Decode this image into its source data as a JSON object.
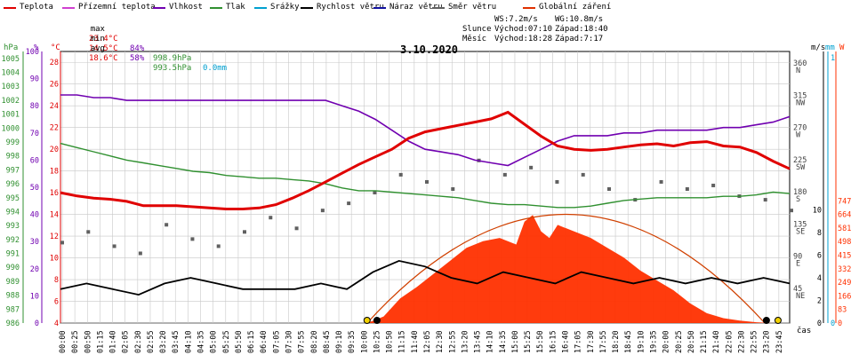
{
  "legend": [
    {
      "label": "Teplota",
      "color": "#e00000"
    },
    {
      "label": "Přízemní teplota",
      "color": "#d040d0"
    },
    {
      "label": "Vlhkost",
      "color": "#7000b0"
    },
    {
      "label": "Tlak",
      "color": "#309030"
    },
    {
      "label": "Srážky",
      "color": "#00a0d0"
    },
    {
      "label": "Rychlost větru",
      "color": "#000000"
    },
    {
      "label": "Náraz větru",
      "color": "#1010a0"
    },
    {
      "label": "Směr větru",
      "color": "#606060"
    },
    {
      "label": "Globální záření",
      "color": "#e03000"
    }
  ],
  "stats": {
    "max_label": "max",
    "max_temp": "23.4°C",
    "max_hum": "84%",
    "max_press": "998.9hPa",
    "max_rain": "0.0mm",
    "min_label": "min",
    "min_temp": "14.5°C",
    "min_hum": "58%",
    "min_press": "993.5hPa",
    "avg_label": "avg",
    "avg_temp": "18.6°C"
  },
  "wind": {
    "ws": "WS:7.2m/s",
    "wg": "WG:10.8m/s"
  },
  "sun": {
    "label": "Slunce",
    "rise": "Východ:07:10",
    "set": "Západ:18:40"
  },
  "moon": {
    "label": "Měsíc",
    "rise": "Východ:18:28",
    "set": "Západ:7:17"
  },
  "unit_labels": {
    "hpa": "hPa",
    "pct": "%",
    "degc": "°C",
    "ms": "m/s",
    "mm": "mm",
    "w": "W",
    "cas": "čas"
  },
  "colors": {
    "temp": "#e00000",
    "ground": "#d040d0",
    "hum": "#7000b0",
    "press": "#309030",
    "rain": "#00a0d0",
    "wind": "#000000",
    "gust": "#1010a0",
    "dir": "#606060",
    "rad": "#ff3000",
    "grid": "#c8c8c8"
  },
  "chart_data": {
    "type": "line",
    "title": "3.10.2020",
    "x_ticks": [
      "00:00",
      "00:25",
      "00:50",
      "01:15",
      "01:40",
      "02:05",
      "02:30",
      "02:55",
      "03:20",
      "03:45",
      "04:10",
      "04:35",
      "05:00",
      "05:25",
      "05:50",
      "06:15",
      "06:40",
      "07:05",
      "07:30",
      "07:55",
      "08:20",
      "08:45",
      "09:10",
      "09:35",
      "10:00",
      "10:25",
      "10:50",
      "11:15",
      "11:40",
      "12:05",
      "12:30",
      "12:55",
      "13:20",
      "13:45",
      "14:10",
      "14:35",
      "15:00",
      "15:25",
      "15:50",
      "16:15",
      "16:40",
      "17:05",
      "17:30",
      "17:55",
      "18:20",
      "18:45",
      "19:10",
      "19:35",
      "20:00",
      "20:25",
      "20:50",
      "21:15",
      "21:40",
      "22:05",
      "22:30",
      "22:55",
      "23:20",
      "23:45"
    ],
    "axes": {
      "hpa": {
        "ticks": [
          "1005",
          "1004",
          "1003",
          "1002",
          "1001",
          "1000",
          "999",
          "998",
          "997",
          "996",
          "995",
          "994",
          "993",
          "992",
          "991",
          "990",
          "989",
          "988",
          "987",
          "986"
        ],
        "range": [
          986,
          1005.5
        ]
      },
      "pct": {
        "ticks": [
          "100",
          "90",
          "80",
          "70",
          "60",
          "50",
          "40",
          "30",
          "20",
          "10",
          "0"
        ],
        "range": [
          0,
          100
        ]
      },
      "degc": {
        "ticks": [
          "28",
          "26",
          "24",
          "22",
          "20",
          "18",
          "16",
          "14",
          "12",
          "10",
          "8",
          "6",
          "4"
        ],
        "range": [
          4,
          29
        ]
      },
      "dir": {
        "ticks": [
          "360",
          "315",
          "270",
          "225",
          "180",
          "135",
          "90",
          "45"
        ],
        "labels": [
          "N",
          "NW",
          "W",
          "SW",
          "S",
          "SE",
          "E",
          "NE"
        ]
      },
      "ms": {
        "ticks": [
          "10",
          "8",
          "6",
          "4",
          "2",
          "0"
        ],
        "range": [
          0,
          10
        ]
      },
      "mm": {
        "ticks": [
          "1",
          "0"
        ],
        "range": [
          0,
          1
        ]
      },
      "w": {
        "ticks": [
          "747",
          "664",
          "581",
          "498",
          "415",
          "332",
          "249",
          "166",
          "83",
          "0"
        ],
        "range": [
          0,
          830
        ]
      }
    },
    "series": [
      {
        "name": "Teplota",
        "unit": "°C",
        "points": [
          [
            0,
            16
          ],
          [
            1,
            15.7
          ],
          [
            2,
            15.5
          ],
          [
            3,
            15.4
          ],
          [
            4,
            15.2
          ],
          [
            5,
            14.8
          ],
          [
            6,
            14.8
          ],
          [
            7,
            14.8
          ],
          [
            8,
            14.7
          ],
          [
            9,
            14.6
          ],
          [
            10,
            14.5
          ],
          [
            11,
            14.5
          ],
          [
            12,
            14.6
          ],
          [
            13,
            14.9
          ],
          [
            14,
            15.5
          ],
          [
            15,
            16.2
          ],
          [
            16,
            17
          ],
          [
            17,
            17.8
          ],
          [
            18,
            18.6
          ],
          [
            19,
            19.3
          ],
          [
            20,
            20
          ],
          [
            21,
            21
          ],
          [
            22,
            21.6
          ],
          [
            23,
            21.9
          ],
          [
            24,
            22.2
          ],
          [
            25,
            22.5
          ],
          [
            26,
            22.8
          ],
          [
            27,
            23.4
          ],
          [
            28,
            22.3
          ],
          [
            29,
            21.2
          ],
          [
            30,
            20.3
          ],
          [
            31,
            20
          ],
          [
            32,
            19.9
          ],
          [
            33,
            20
          ],
          [
            34,
            20.2
          ],
          [
            35,
            20.4
          ],
          [
            36,
            20.5
          ],
          [
            37,
            20.3
          ],
          [
            38,
            20.6
          ],
          [
            39,
            20.7
          ],
          [
            40,
            20.3
          ],
          [
            41,
            20.2
          ],
          [
            42,
            19.7
          ],
          [
            43,
            18.9
          ],
          [
            44,
            18.2
          ]
        ]
      },
      {
        "name": "Vlhkost",
        "unit": "%",
        "points": [
          [
            0,
            84
          ],
          [
            1,
            84
          ],
          [
            2,
            83
          ],
          [
            3,
            83
          ],
          [
            4,
            82
          ],
          [
            5,
            82
          ],
          [
            6,
            82
          ],
          [
            7,
            82
          ],
          [
            8,
            82
          ],
          [
            9,
            82
          ],
          [
            10,
            82
          ],
          [
            11,
            82
          ],
          [
            12,
            82
          ],
          [
            13,
            82
          ],
          [
            14,
            82
          ],
          [
            15,
            82
          ],
          [
            16,
            82
          ],
          [
            17,
            80
          ],
          [
            18,
            78
          ],
          [
            19,
            75
          ],
          [
            20,
            71
          ],
          [
            21,
            67
          ],
          [
            22,
            64
          ],
          [
            23,
            63
          ],
          [
            24,
            62
          ],
          [
            25,
            60
          ],
          [
            26,
            59
          ],
          [
            27,
            58
          ],
          [
            28,
            61
          ],
          [
            29,
            64
          ],
          [
            30,
            67
          ],
          [
            31,
            69
          ],
          [
            32,
            69
          ],
          [
            33,
            69
          ],
          [
            34,
            70
          ],
          [
            35,
            70
          ],
          [
            36,
            71
          ],
          [
            37,
            71
          ],
          [
            38,
            71
          ],
          [
            39,
            71
          ],
          [
            40,
            72
          ],
          [
            41,
            72
          ],
          [
            42,
            73
          ],
          [
            43,
            74
          ],
          [
            44,
            76
          ]
        ]
      },
      {
        "name": "Tlak",
        "unit": "hPa",
        "points": [
          [
            0,
            998.9
          ],
          [
            1,
            998.6
          ],
          [
            2,
            998.3
          ],
          [
            3,
            998
          ],
          [
            4,
            997.7
          ],
          [
            5,
            997.5
          ],
          [
            6,
            997.3
          ],
          [
            7,
            997.1
          ],
          [
            8,
            996.9
          ],
          [
            9,
            996.8
          ],
          [
            10,
            996.6
          ],
          [
            11,
            996.5
          ],
          [
            12,
            996.4
          ],
          [
            13,
            996.4
          ],
          [
            14,
            996.3
          ],
          [
            15,
            996.2
          ],
          [
            16,
            996
          ],
          [
            17,
            995.7
          ],
          [
            18,
            995.5
          ],
          [
            19,
            995.5
          ],
          [
            20,
            995.4
          ],
          [
            21,
            995.3
          ],
          [
            22,
            995.2
          ],
          [
            23,
            995.1
          ],
          [
            24,
            995
          ],
          [
            25,
            994.8
          ],
          [
            26,
            994.6
          ],
          [
            27,
            994.5
          ],
          [
            28,
            994.5
          ],
          [
            29,
            994.4
          ],
          [
            30,
            994.3
          ],
          [
            31,
            994.3
          ],
          [
            32,
            994.4
          ],
          [
            33,
            994.6
          ],
          [
            34,
            994.8
          ],
          [
            35,
            994.9
          ],
          [
            36,
            995
          ],
          [
            37,
            995
          ],
          [
            38,
            995
          ],
          [
            39,
            995
          ],
          [
            40,
            995.1
          ],
          [
            41,
            995.1
          ],
          [
            42,
            995.2
          ],
          [
            43,
            995.4
          ],
          [
            44,
            995.3
          ]
        ]
      },
      {
        "name": "Rychlost větru",
        "unit": "m/s",
        "points": [
          [
            0,
            3
          ],
          [
            2,
            3.5
          ],
          [
            4,
            3
          ],
          [
            6,
            2.5
          ],
          [
            8,
            3.5
          ],
          [
            10,
            4
          ],
          [
            12,
            3.5
          ],
          [
            14,
            3
          ],
          [
            16,
            3
          ],
          [
            18,
            3
          ],
          [
            20,
            3.5
          ],
          [
            22,
            3
          ],
          [
            24,
            4.5
          ],
          [
            26,
            5.5
          ],
          [
            28,
            5
          ],
          [
            30,
            4
          ],
          [
            32,
            3.5
          ],
          [
            34,
            4.5
          ],
          [
            36,
            4
          ],
          [
            38,
            3.5
          ],
          [
            40,
            4.5
          ],
          [
            42,
            4
          ],
          [
            44,
            3.5
          ],
          [
            46,
            4
          ],
          [
            48,
            3.5
          ],
          [
            50,
            4
          ],
          [
            52,
            3.5
          ],
          [
            54,
            4
          ],
          [
            56,
            3.5
          ]
        ]
      },
      {
        "name": "Globální záření",
        "unit": "W",
        "points": [
          [
            18.5,
            0
          ],
          [
            19.5,
            40
          ],
          [
            20.5,
            150
          ],
          [
            21.5,
            220
          ],
          [
            22.5,
            300
          ],
          [
            23.5,
            380
          ],
          [
            24.5,
            460
          ],
          [
            25.5,
            500
          ],
          [
            26.5,
            520
          ],
          [
            27.5,
            480
          ],
          [
            28,
            620
          ],
          [
            28.5,
            660
          ],
          [
            29,
            560
          ],
          [
            29.5,
            520
          ],
          [
            30,
            600
          ],
          [
            31,
            560
          ],
          [
            32,
            520
          ],
          [
            33,
            460
          ],
          [
            34,
            400
          ],
          [
            35,
            320
          ],
          [
            36,
            260
          ],
          [
            37,
            200
          ],
          [
            38,
            120
          ],
          [
            39,
            60
          ],
          [
            40,
            30
          ],
          [
            41,
            15
          ],
          [
            42,
            5
          ],
          [
            43,
            0
          ]
        ]
      },
      {
        "name": "Směr větru",
        "unit": "°",
        "points": [
          [
            0,
            115
          ],
          [
            2,
            130
          ],
          [
            4,
            110
          ],
          [
            6,
            100
          ],
          [
            8,
            140
          ],
          [
            10,
            120
          ],
          [
            12,
            110
          ],
          [
            14,
            130
          ],
          [
            16,
            150
          ],
          [
            18,
            135
          ],
          [
            20,
            160
          ],
          [
            22,
            170
          ],
          [
            24,
            185
          ],
          [
            26,
            210
          ],
          [
            28,
            200
          ],
          [
            30,
            190
          ],
          [
            32,
            230
          ],
          [
            34,
            210
          ],
          [
            36,
            220
          ],
          [
            38,
            200
          ],
          [
            40,
            210
          ],
          [
            42,
            190
          ],
          [
            44,
            175
          ],
          [
            46,
            200
          ],
          [
            48,
            190
          ],
          [
            50,
            195
          ],
          [
            52,
            180
          ],
          [
            54,
            175
          ],
          [
            56,
            160
          ]
        ]
      }
    ]
  }
}
